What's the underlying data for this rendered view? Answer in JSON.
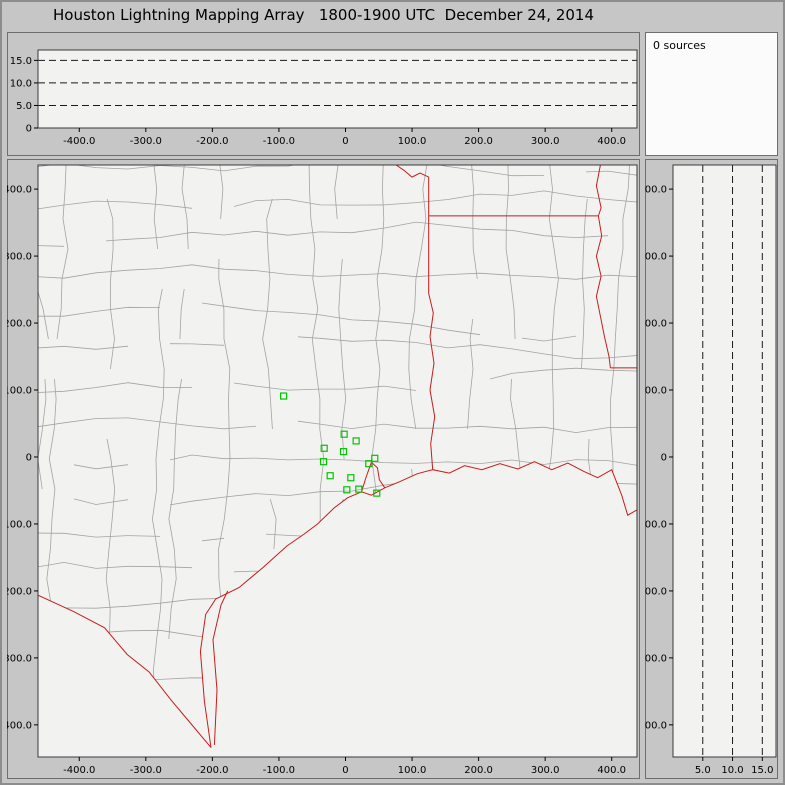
{
  "title": "Houston Lightning Mapping Array   1800-1900 UTC  December 24, 2014",
  "time_range": "1800-1900 UTC",
  "date": "December 24, 2014",
  "colors": {
    "window_bg": "#c6c6c6",
    "panel_bg": "#f2f2f1",
    "sources_bg": "#fbfbfb",
    "county_line": "#a3a3a3",
    "state_line": "#c81c1c",
    "station": "#00c400",
    "gridline": "#1a1a1a",
    "border": "#6e6e6e",
    "plot_border": "#3a3a3a",
    "text": "#000000"
  },
  "chart_data": {
    "type": "scatter",
    "title": "Houston Lightning Mapping Array   1800-1900 UTC  December 24, 2014",
    "panels": {
      "altitude_vs_ew": {
        "x_range_km": [
          -462,
          438
        ],
        "alt_range_km": [
          0,
          17.3
        ],
        "x_tick_values": [
          -400,
          -300,
          -200,
          -100,
          0,
          100,
          200,
          300,
          400
        ],
        "x_tick_labels": [
          "-400.0",
          "-300.0",
          "-200.0",
          "-100.0",
          "0",
          "100.0",
          "200.0",
          "300.0",
          "400.0"
        ],
        "alt_tick_values": [
          15,
          10,
          5,
          0
        ],
        "alt_tick_labels": [
          "15.0",
          "10.0",
          "5.0",
          "0"
        ],
        "dashed_gridlines_alt": [
          5,
          10,
          15
        ],
        "points": []
      },
      "source_count": {
        "label": "0 sources",
        "points": []
      },
      "map": {
        "x_range_km": [
          -462,
          438
        ],
        "y_range_km": [
          -448,
          436
        ],
        "x_tick_values": [
          -400,
          -300,
          -200,
          -100,
          0,
          100,
          200,
          300,
          400
        ],
        "x_tick_labels": [
          "-400.0",
          "-300.0",
          "-200.0",
          "-100.0",
          "0",
          "100.0",
          "200.0",
          "300.0",
          "400.0"
        ],
        "y_tick_values": [
          400,
          300,
          200,
          100,
          0,
          -100,
          -200,
          -300,
          -400
        ],
        "y_tick_labels": [
          "400.0",
          "300.0",
          "200.0",
          "100.0",
          "0",
          "-100.0",
          "-200.0",
          "-300.0",
          "-400.0"
        ],
        "stations_km": [
          [
            -93,
            91
          ],
          [
            -2,
            34
          ],
          [
            16,
            24
          ],
          [
            -32,
            13
          ],
          [
            -3,
            8
          ],
          [
            -33,
            -7
          ],
          [
            44,
            -2
          ],
          [
            35,
            -10
          ],
          [
            -23,
            -28
          ],
          [
            8,
            -31
          ],
          [
            2,
            -49
          ],
          [
            20,
            -48
          ],
          [
            47,
            -54
          ]
        ],
        "boundaries_km": {
          "rio_grande": [
            [
              -463,
              -206
            ],
            [
              -408,
              -231
            ],
            [
              -362,
              -255
            ],
            [
              -328,
              -295
            ],
            [
              -295,
              -321
            ],
            [
              -262,
              -363
            ],
            [
              -235,
              -395
            ],
            [
              -202,
              -434
            ]
          ],
          "gulf_coast": [
            [
              -202,
              -434
            ],
            [
              -212,
              -365
            ],
            [
              -218,
              -290
            ],
            [
              -210,
              -235
            ],
            [
              -195,
              -212
            ],
            [
              -160,
              -195
            ],
            [
              -125,
              -166
            ],
            [
              -88,
              -133
            ],
            [
              -62,
              -115
            ],
            [
              -42,
              -100
            ],
            [
              -17,
              -76
            ],
            [
              3,
              -61
            ],
            [
              24,
              -52
            ],
            [
              39,
              -57
            ],
            [
              59,
              -46
            ],
            [
              81,
              -37
            ],
            [
              108,
              -25
            ],
            [
              131,
              -19
            ],
            [
              156,
              -24
            ],
            [
              179,
              -13
            ],
            [
              205,
              -19
            ],
            [
              232,
              -10
            ],
            [
              259,
              -18
            ],
            [
              284,
              -7
            ],
            [
              310,
              -19
            ],
            [
              334,
              -9
            ],
            [
              359,
              -22
            ],
            [
              379,
              -31
            ],
            [
              400,
              -19
            ],
            [
              415,
              -57
            ],
            [
              424,
              -87
            ],
            [
              438,
              -79
            ]
          ],
          "padre_island": [
            [
              -197,
              -430
            ],
            [
              -193,
              -348
            ],
            [
              -199,
              -273
            ],
            [
              -187,
              -221
            ],
            [
              -177,
              -200
            ]
          ],
          "galveston_bay": [
            [
              24,
              -52
            ],
            [
              31,
              -30
            ],
            [
              39,
              -8
            ],
            [
              48,
              -16
            ],
            [
              51,
              -34
            ],
            [
              59,
              -46
            ]
          ],
          "tx_la_border": [
            [
              131,
              -19
            ],
            [
              128,
              20
            ],
            [
              134,
              60
            ],
            [
              127,
              100
            ],
            [
              133,
              140
            ],
            [
              127,
              180
            ],
            [
              132,
              215
            ],
            [
              125,
              244
            ],
            [
              125,
              418
            ]
          ],
          "red_river": [
            [
              125,
              418
            ],
            [
              112,
              424
            ],
            [
              100,
              418
            ],
            [
              88,
              428
            ],
            [
              76,
              436
            ]
          ],
          "state_border_33n": [
            [
              125,
              360
            ],
            [
              380,
              360
            ]
          ],
          "mississippi_river": [
            [
              383,
              436
            ],
            [
              377,
              405
            ],
            [
              384,
              372
            ],
            [
              380,
              360
            ],
            [
              385,
              330
            ],
            [
              377,
              300
            ],
            [
              384,
              270
            ],
            [
              377,
              240
            ],
            [
              383,
              210
            ],
            [
              389,
              180
            ],
            [
              396,
              150
            ],
            [
              398,
              133
            ]
          ],
          "state_border_31n": [
            [
              398,
              133
            ],
            [
              442,
              133
            ]
          ]
        }
      },
      "altitude_vs_ns": {
        "alt_range_km": [
          0,
          17.3
        ],
        "y_range_km": [
          -448,
          436
        ],
        "alt_tick_values": [
          5,
          10,
          15
        ],
        "alt_tick_labels": [
          "5.0",
          "10.0",
          "15.0"
        ],
        "y_tick_values": [
          400,
          300,
          200,
          100,
          0,
          -100,
          -200,
          -300,
          -400
        ],
        "y_tick_labels": [
          "400.0",
          "300.0",
          "200.0",
          "100.0",
          "0",
          "-100.0",
          "-200.0",
          "-300.0",
          "-400.0"
        ],
        "dashed_gridlines_alt": [
          5,
          10,
          15
        ],
        "points": []
      }
    }
  }
}
